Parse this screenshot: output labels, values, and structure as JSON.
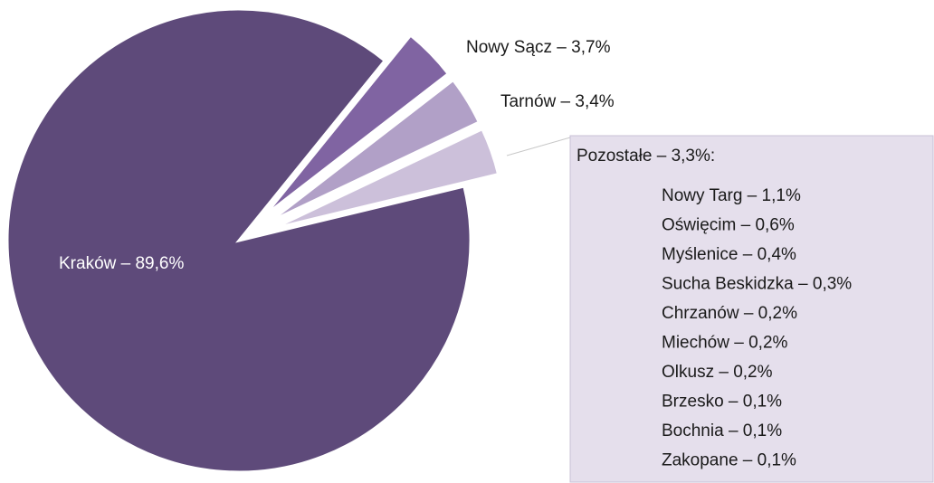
{
  "chart_data": {
    "type": "pie",
    "values": [
      89.6,
      3.7,
      3.4,
      3.3
    ],
    "value_labels": [
      "Kraków – 89,6%",
      "Nowy Sącz – 3,7%",
      "Tarnów – 3,4%",
      "Pozostałe – 3,3%:"
    ],
    "colors": [
      "#5e4a7a",
      "#8064a2",
      "#b1a0c7",
      "#ccc0da"
    ],
    "breakdown": {
      "value_labels": [
        "Nowy Targ – 1,1%",
        "Oświęcim – 0,6%",
        "Myślenice – 0,4%",
        "Sucha Beskidzka – 0,3%",
        "Chrzanów – 0,2%",
        "Miechów – 0,2%",
        "Olkusz – 0,2%",
        "Brzesko – 0,1%",
        "Bochnia – 0,1%",
        "Zakopane – 0,1%"
      ],
      "values": [
        1.1,
        0.6,
        0.4,
        0.3,
        0.2,
        0.2,
        0.2,
        0.1,
        0.1,
        0.1
      ]
    }
  }
}
